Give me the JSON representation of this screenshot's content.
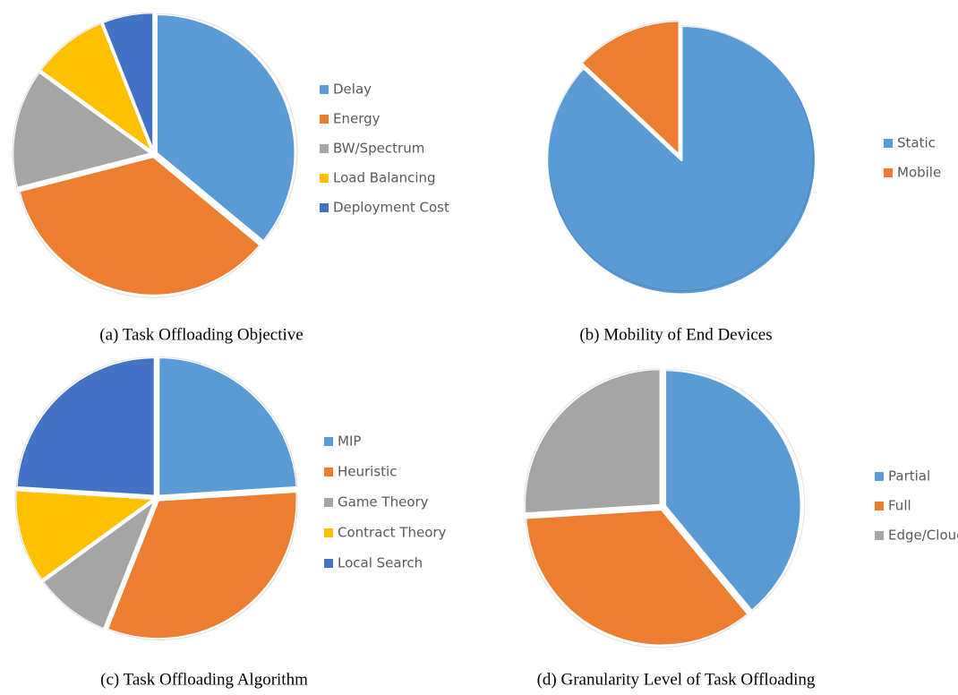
{
  "chart_data": [
    {
      "type": "pie",
      "title": "(a) Task Offloading Objective",
      "categories": [
        "Delay",
        "Energy",
        "BW/Spectrum",
        "Load Balancing",
        "Deployment Cost"
      ],
      "values": [
        36,
        35,
        14,
        9,
        6
      ],
      "colors": [
        "#5b9bd5",
        "#ed7d31",
        "#a5a5a5",
        "#ffc000",
        "#4472c4"
      ]
    },
    {
      "type": "pie",
      "title": "(b) Mobility of End Devices",
      "categories": [
        "Static",
        "Mobile"
      ],
      "values": [
        87,
        13
      ],
      "colors": [
        "#5b9bd5",
        "#ed7d31"
      ]
    },
    {
      "type": "pie",
      "title": "(c) Task Offloading Algorithm",
      "categories": [
        "MIP",
        "Heuristic",
        "Game Theory",
        "Contract Theory",
        "Local Search"
      ],
      "values": [
        24,
        32,
        9,
        11,
        24
      ],
      "colors": [
        "#5b9bd5",
        "#ed7d31",
        "#a5a5a5",
        "#ffc000",
        "#4472c4"
      ]
    },
    {
      "type": "pie",
      "title": "(d) Granularity Level of Task Offloading",
      "categories": [
        "Partial",
        "Full",
        "Edge/Cloud"
      ],
      "values": [
        39,
        35,
        26
      ],
      "colors": [
        "#5b9bd5",
        "#ed7d31",
        "#a5a5a5"
      ]
    }
  ]
}
